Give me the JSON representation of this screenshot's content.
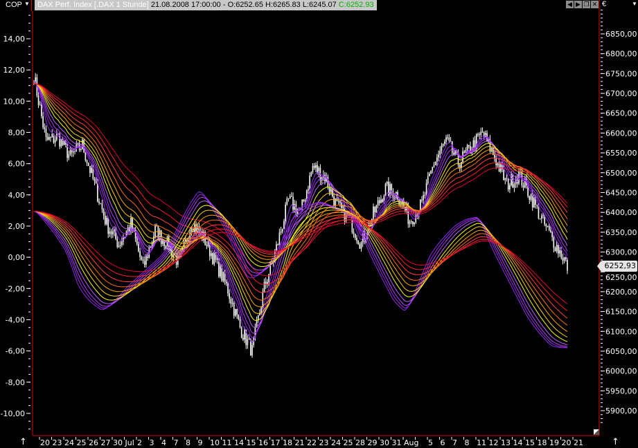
{
  "toolbar": {
    "indicator_label": "COP",
    "instrument_title": "DAX Perf. Index [.DAX  1 Stunde]",
    "bar_info": "21.08.2008 17:00:00 - O:6252.65 H:6265.83 L:6245.07",
    "close_info": "C:6252.93",
    "currency": "€",
    "window_buttons": [
      "back-icon",
      "forward-icon",
      "restore-icon",
      "close-icon"
    ]
  },
  "last_price_label": "6252,93",
  "colors": {
    "candles": "#ffffff",
    "frame": "#e00000",
    "ribbon": [
      "#8a2be2",
      "#a020f0",
      "#b040ff",
      "#c060ff",
      "#ffff00",
      "#ffd000",
      "#ffa500",
      "#ff7000",
      "#ff4040",
      "#ff2020",
      "#e00030"
    ]
  },
  "chart_data": {
    "type": "line",
    "title": "",
    "x_tick_labels": [
      "20",
      "23",
      "24",
      "25",
      "26",
      "27",
      "30",
      "Jul",
      "2",
      "3",
      "4",
      "7",
      "8",
      "9",
      "10",
      "11",
      "14",
      "15",
      "16",
      "17",
      "18",
      "21",
      "22",
      "23",
      "24",
      "25",
      "28",
      "29",
      "30",
      "31",
      "Aug",
      "",
      "5",
      "6",
      "7",
      "8",
      "11",
      "12",
      "13",
      "14",
      "15",
      "18",
      "19",
      "20",
      "21"
    ],
    "left_axis": {
      "range": [
        -11,
        15.5
      ],
      "ticks": [
        14,
        12,
        10,
        8,
        6,
        4,
        2,
        0,
        -2,
        -4,
        -6,
        -8,
        -10
      ],
      "tick_labels": [
        "14,00",
        "12,00",
        "10,00",
        "8,00",
        "6,00",
        "4,00",
        "2,00",
        "0,00",
        "-2,00",
        "-4,00",
        "-6,00",
        "-8,00",
        "-10,00"
      ]
    },
    "right_axis": {
      "range": [
        5870,
        6910
      ],
      "ticks": [
        6850,
        6800,
        6750,
        6700,
        6650,
        6600,
        6550,
        6500,
        6450,
        6400,
        6350,
        6300,
        6250,
        6200,
        6150,
        6100,
        6050,
        6000,
        5950,
        5900
      ],
      "tick_labels": [
        "6850,00",
        "6800,00",
        "6750,00",
        "6700,00",
        "6650,00",
        "6600,00",
        "6550,00",
        "6500,00",
        "6450,00",
        "6400,00",
        "6350,00",
        "6300,00",
        "6250,00",
        "6200,00",
        "6150,00",
        "6100,00",
        "6050,00",
        "6000,00",
        "5950,00",
        "5900,00"
      ]
    },
    "price_daily_close": [
      6744,
      6580,
      6590,
      6540,
      6570,
      6470,
      6370,
      6320,
      6370,
      6260,
      6355,
      6320,
      6270,
      6375,
      6335,
      6275,
      6205,
      6110,
      6050,
      6210,
      6310,
      6430,
      6400,
      6515,
      6490,
      6415,
      6385,
      6320,
      6395,
      6460,
      6445,
      6380,
      6420,
      6525,
      6580,
      6525,
      6560,
      6600,
      6540,
      6470,
      6495,
      6440,
      6375,
      6320,
      6270
    ],
    "last_close": 6252.93,
    "cop_daily": [
      4.3,
      3.5,
      2.4,
      1.4,
      0.2,
      -2.2,
      -3.0,
      -3.5,
      -2.7,
      -1.8,
      -1.1,
      -0.4,
      0.3,
      1.8,
      3.4,
      4.5,
      3.0,
      1.8,
      0.0,
      -1.6,
      -1.0,
      0.0,
      1.6,
      3.2,
      3.4,
      3.6,
      3.1,
      2.8,
      2.0,
      0.0,
      -1.5,
      -3.0,
      -3.6,
      -1.5,
      0.4,
      1.3,
      2.1,
      2.5,
      2.6,
      0.5,
      -1.0,
      -2.5,
      -4.0,
      -5.0,
      -5.8
    ],
    "grid": false
  }
}
